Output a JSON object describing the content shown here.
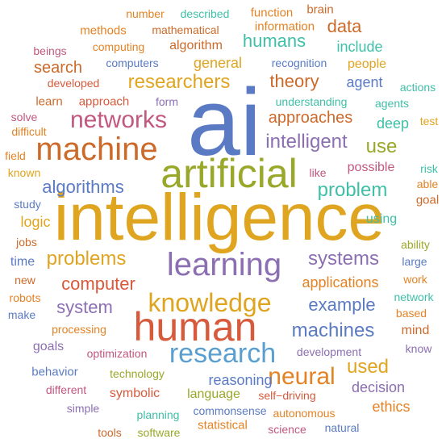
{
  "palette": {
    "orange": "#e38326",
    "green": "#8fb026",
    "purple": "#8c6fb3",
    "blue": "#5a9fd0",
    "teal": "#3fbfa8",
    "gold": "#e0a520",
    "brown": "#cc6a2a",
    "red": "#d85a3c",
    "magenta": "#c2577f",
    "darkblue": "#5a7bc4",
    "olive": "#9aa82a",
    "indigo": "#6c7fc6"
  },
  "words": [
    {
      "text": "ai",
      "color": "darkblue"
    },
    {
      "text": "intelligence",
      "color": "gold"
    },
    {
      "text": "artificial",
      "color": "olive"
    },
    {
      "text": "human",
      "color": "red"
    },
    {
      "text": "learning",
      "color": "purple"
    },
    {
      "text": "machine",
      "color": "brown"
    },
    {
      "text": "knowledge",
      "color": "gold"
    },
    {
      "text": "research",
      "color": "blue"
    },
    {
      "text": "networks",
      "color": "magenta"
    },
    {
      "text": "neural",
      "color": "orange"
    },
    {
      "text": "researchers",
      "color": "gold"
    },
    {
      "text": "intelligent",
      "color": "purple"
    },
    {
      "text": "systems",
      "color": "purple"
    },
    {
      "text": "machines",
      "color": "darkblue"
    },
    {
      "text": "problems",
      "color": "gold"
    },
    {
      "text": "computer",
      "color": "red"
    },
    {
      "text": "problem",
      "color": "teal"
    },
    {
      "text": "algorithms",
      "color": "darkblue"
    },
    {
      "text": "system",
      "color": "purple"
    },
    {
      "text": "example",
      "color": "darkblue"
    },
    {
      "text": "used",
      "color": "gold"
    },
    {
      "text": "use",
      "color": "olive"
    },
    {
      "text": "theory",
      "color": "brown"
    },
    {
      "text": "humans",
      "color": "teal"
    },
    {
      "text": "data",
      "color": "brown"
    },
    {
      "text": "approaches",
      "color": "brown"
    },
    {
      "text": "applications",
      "color": "orange"
    },
    {
      "text": "reasoning",
      "color": "darkblue"
    },
    {
      "text": "decision",
      "color": "purple"
    },
    {
      "text": "general",
      "color": "gold"
    },
    {
      "text": "search",
      "color": "brown"
    },
    {
      "text": "agent",
      "color": "darkblue"
    },
    {
      "text": "deep",
      "color": "teal"
    },
    {
      "text": "include",
      "color": "teal"
    },
    {
      "text": "people",
      "color": "gold"
    },
    {
      "text": "logic",
      "color": "gold"
    },
    {
      "text": "ethics",
      "color": "orange"
    },
    {
      "text": "language",
      "color": "olive"
    },
    {
      "text": "symbolic",
      "color": "red"
    },
    {
      "text": "possible",
      "color": "magenta"
    },
    {
      "text": "time",
      "color": "darkblue"
    },
    {
      "text": "using",
      "color": "teal"
    },
    {
      "text": "goals",
      "color": "purple"
    },
    {
      "text": "mind",
      "color": "brown"
    },
    {
      "text": "processing",
      "color": "orange"
    },
    {
      "text": "behavior",
      "color": "darkblue"
    },
    {
      "text": "number",
      "color": "orange"
    },
    {
      "text": "described",
      "color": "teal"
    },
    {
      "text": "function",
      "color": "orange"
    },
    {
      "text": "brain",
      "color": "brown"
    },
    {
      "text": "methods",
      "color": "orange"
    },
    {
      "text": "mathematical",
      "color": "brown"
    },
    {
      "text": "information",
      "color": "orange"
    },
    {
      "text": "beings",
      "color": "magenta"
    },
    {
      "text": "computing",
      "color": "orange"
    },
    {
      "text": "algorithm",
      "color": "brown"
    },
    {
      "text": "computers",
      "color": "darkblue"
    },
    {
      "text": "recognition",
      "color": "darkblue"
    },
    {
      "text": "developed",
      "color": "red"
    },
    {
      "text": "actions",
      "color": "teal"
    },
    {
      "text": "learn",
      "color": "brown"
    },
    {
      "text": "approach",
      "color": "red"
    },
    {
      "text": "form",
      "color": "purple"
    },
    {
      "text": "understanding",
      "color": "teal"
    },
    {
      "text": "agents",
      "color": "teal"
    },
    {
      "text": "solve",
      "color": "magenta"
    },
    {
      "text": "test",
      "color": "gold"
    },
    {
      "text": "difficult",
      "color": "orange"
    },
    {
      "text": "field",
      "color": "orange"
    },
    {
      "text": "known",
      "color": "gold"
    },
    {
      "text": "like",
      "color": "magenta"
    },
    {
      "text": "risk",
      "color": "teal"
    },
    {
      "text": "able",
      "color": "orange"
    },
    {
      "text": "goal",
      "color": "brown"
    },
    {
      "text": "study",
      "color": "darkblue"
    },
    {
      "text": "jobs",
      "color": "brown"
    },
    {
      "text": "ability",
      "color": "olive"
    },
    {
      "text": "large",
      "color": "darkblue"
    },
    {
      "text": "new",
      "color": "brown"
    },
    {
      "text": "work",
      "color": "orange"
    },
    {
      "text": "robots",
      "color": "orange"
    },
    {
      "text": "network",
      "color": "teal"
    },
    {
      "text": "make",
      "color": "darkblue"
    },
    {
      "text": "based",
      "color": "orange"
    },
    {
      "text": "know",
      "color": "purple"
    },
    {
      "text": "optimization",
      "color": "magenta"
    },
    {
      "text": "development",
      "color": "purple"
    },
    {
      "text": "technology",
      "color": "olive"
    },
    {
      "text": "different",
      "color": "magenta"
    },
    {
      "text": "simple",
      "color": "purple"
    },
    {
      "text": "self−driving",
      "color": "red"
    },
    {
      "text": "autonomous",
      "color": "orange"
    },
    {
      "text": "planning",
      "color": "teal"
    },
    {
      "text": "commonsense",
      "color": "darkblue"
    },
    {
      "text": "statistical",
      "color": "orange"
    },
    {
      "text": "science",
      "color": "magenta"
    },
    {
      "text": "natural",
      "color": "darkblue"
    },
    {
      "text": "tools",
      "color": "brown"
    },
    {
      "text": "software",
      "color": "olive"
    }
  ]
}
